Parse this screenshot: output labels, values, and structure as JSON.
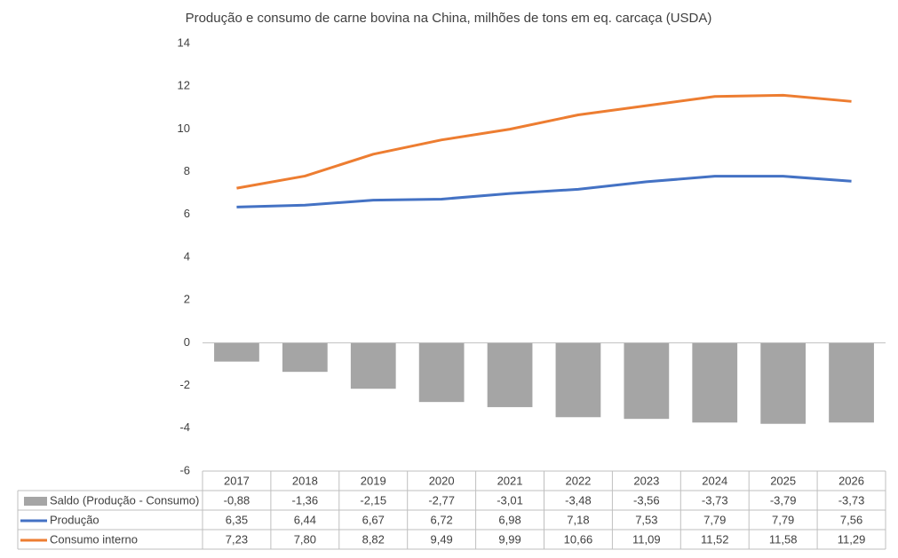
{
  "chart_data": {
    "type": "bar",
    "title": "Produção e consumo de carne bovina na China, milhões de tons em eq. carcaça (USDA)",
    "categories": [
      "2017",
      "2018",
      "2019",
      "2020",
      "2021",
      "2022",
      "2023",
      "2024",
      "2025",
      "2026"
    ],
    "series": [
      {
        "name": "Saldo (Produção - Consumo)",
        "type": "bar",
        "color": "#a5a5a5",
        "values": [
          -0.88,
          -1.36,
          -2.15,
          -2.77,
          -3.01,
          -3.48,
          -3.56,
          -3.73,
          -3.79,
          -3.73
        ],
        "value_labels": [
          "-0,88",
          "-1,36",
          "-2,15",
          "-2,77",
          "-3,01",
          "-3,48",
          "-3,56",
          "-3,73",
          "-3,79",
          "-3,73"
        ]
      },
      {
        "name": "Produção",
        "type": "line",
        "color": "#4472c4",
        "values": [
          6.35,
          6.44,
          6.67,
          6.72,
          6.98,
          7.18,
          7.53,
          7.79,
          7.79,
          7.56
        ],
        "value_labels": [
          "6,35",
          "6,44",
          "6,67",
          "6,72",
          "6,98",
          "7,18",
          "7,53",
          "7,79",
          "7,79",
          "7,56"
        ]
      },
      {
        "name": "Consumo interno",
        "type": "line",
        "color": "#ed7d31",
        "values": [
          7.23,
          7.8,
          8.82,
          9.49,
          9.99,
          10.66,
          11.09,
          11.52,
          11.58,
          11.29
        ],
        "value_labels": [
          "7,23",
          "7,80",
          "8,82",
          "9,49",
          "9,99",
          "10,66",
          "11,09",
          "11,52",
          "11,58",
          "11,29"
        ]
      }
    ],
    "ylim": [
      -6,
      14
    ],
    "yticks": [
      -6,
      -4,
      -2,
      0,
      2,
      4,
      6,
      8,
      10,
      12,
      14
    ],
    "grid": false
  }
}
